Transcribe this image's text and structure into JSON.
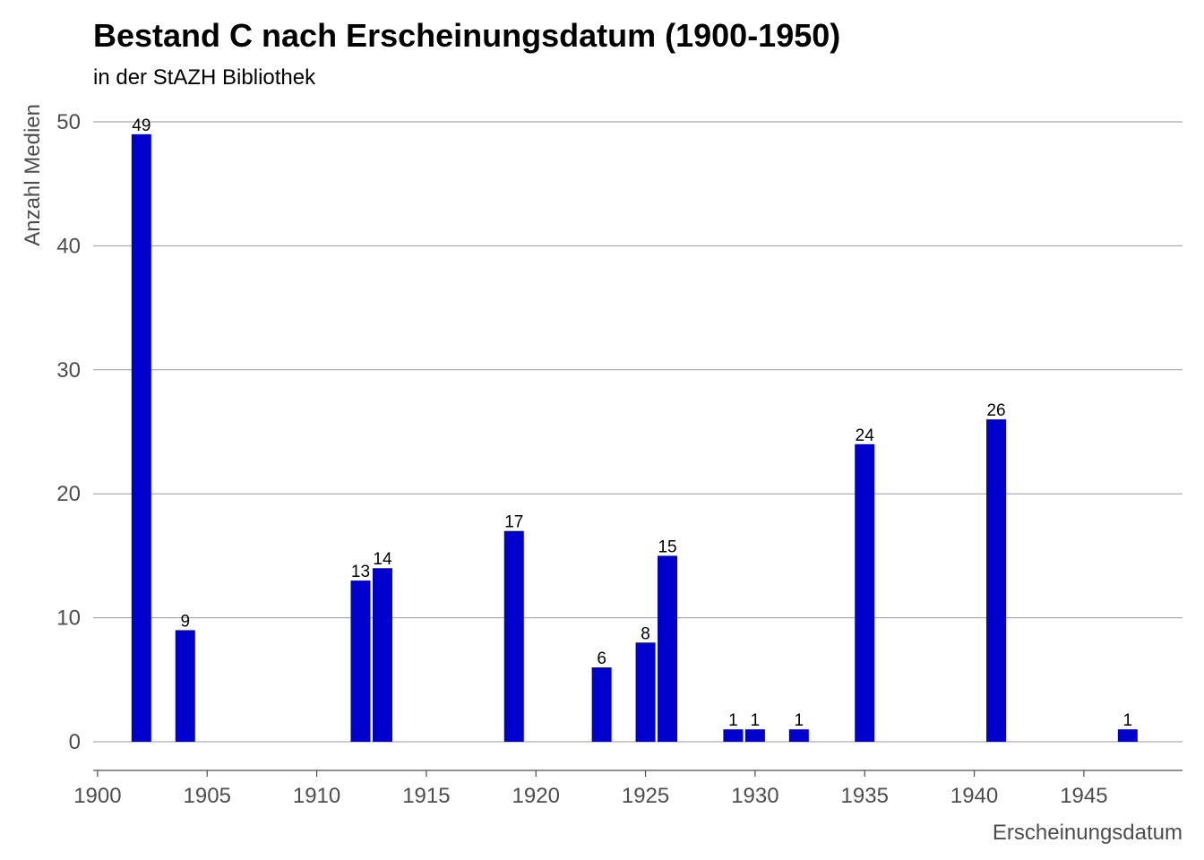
{
  "chart_data": {
    "type": "bar",
    "title": "Bestand C nach Erscheinungsdatum (1900-1950)",
    "subtitle": "in der StAZH Bibliothek",
    "xlabel": "Erscheinungsdatum",
    "ylabel": "Anzahl Medien",
    "x": [
      1902,
      1904,
      1912,
      1913,
      1919,
      1923,
      1925,
      1926,
      1929,
      1930,
      1932,
      1935,
      1941,
      1947
    ],
    "values": [
      49,
      9,
      13,
      14,
      17,
      6,
      8,
      15,
      1,
      1,
      1,
      24,
      26,
      1
    ],
    "xlim": [
      1899.8,
      1949.5
    ],
    "ylim": [
      -2.3,
      50
    ],
    "xticks": [
      1900,
      1905,
      1910,
      1915,
      1920,
      1925,
      1930,
      1935,
      1940,
      1945
    ],
    "yticks": [
      0,
      10,
      20,
      30,
      40,
      50
    ],
    "grid": "horizontal",
    "legend": "none",
    "bar_color": "#0000cc",
    "grid_color": "#999999",
    "axis_color": "#4d4d4d"
  }
}
